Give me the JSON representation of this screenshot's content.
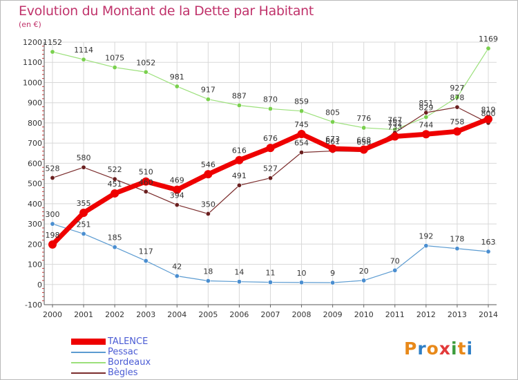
{
  "header": {
    "title": "Evolution du Montant de la Dette par Habitant",
    "unit": "(en €)"
  },
  "chart_data": {
    "type": "line",
    "title": "Evolution du Montant de la Dette par Habitant",
    "subtitle": "(en €)",
    "xlabel": "",
    "ylabel": "",
    "x": [
      "2000",
      "2001",
      "2002",
      "2003",
      "2004",
      "2005",
      "2006",
      "2007",
      "2008",
      "2009",
      "2010",
      "2011",
      "2012",
      "2013",
      "2014"
    ],
    "ylim": [
      -100,
      1200
    ],
    "yticks": [
      "-100",
      "0",
      "100",
      "200",
      "300",
      "400",
      "500",
      "600",
      "700",
      "800",
      "900",
      "1000",
      "1100",
      "1200"
    ],
    "grid": "horizontal",
    "legend_position": "bottom-left",
    "series": [
      {
        "name": "TALENCE",
        "color": "#ee0000",
        "values": [
          198,
          355,
          451,
          510,
          469,
          546,
          616,
          676,
          745,
          673,
          668,
          733,
          744,
          758,
          819
        ],
        "labels": [
          "198",
          "355",
          "451",
          "510",
          "469",
          "546",
          "616",
          "676",
          "745",
          "673",
          "668",
          "733",
          "744",
          "758",
          "819"
        ]
      },
      {
        "name": "Pessac",
        "color": "#5b9bd1",
        "values": [
          300,
          251,
          185,
          117,
          42,
          18,
          14,
          11,
          10,
          9,
          20,
          70,
          192,
          178,
          163
        ],
        "labels": [
          "300",
          "251",
          "185",
          "117",
          "42",
          "18",
          "14",
          "11",
          "10",
          "9",
          "20",
          "70",
          "192",
          "178",
          "163"
        ]
      },
      {
        "name": "Bordeaux",
        "color": "#9be07a",
        "values": [
          1152,
          1114,
          1075,
          1052,
          981,
          917,
          887,
          870,
          859,
          805,
          776,
          767,
          829,
          927,
          1169
        ],
        "labels": [
          "1152",
          "1114",
          "1075",
          "1052",
          "981",
          "917",
          "887",
          "870",
          "859",
          "805",
          "776",
          "767",
          "829",
          "927",
          "1169"
        ]
      },
      {
        "name": "Bègles",
        "color": "#7a2b2b",
        "values": [
          528,
          580,
          522,
          460,
          394,
          350,
          491,
          527,
          654,
          661,
          658,
          752,
          851,
          878,
          800
        ],
        "labels": [
          "528",
          "580",
          "522",
          "460",
          "394",
          "350",
          "491",
          "527",
          "654",
          "661",
          "658",
          "752",
          "851",
          "878",
          "800"
        ]
      }
    ]
  },
  "branding": {
    "logo_text": "Proxiti",
    "logo_letters": [
      "P",
      "r",
      "o",
      "x",
      "i",
      "t",
      "i"
    ],
    "logo_colors": [
      "#e8891a",
      "#2f7fc6",
      "#e8891a",
      "#e23a3a",
      "#3c9c3c",
      "#e8891a",
      "#2f7fc6"
    ]
  }
}
